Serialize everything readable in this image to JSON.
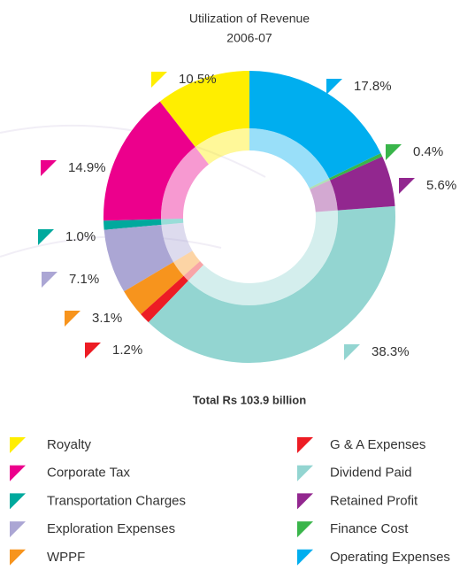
{
  "chart_data": {
    "type": "donut",
    "title": "Utilization of Revenue",
    "subtitle": "2006-07",
    "footer": "Total Rs 103.9 billion",
    "series": [
      {
        "name": "Royalty",
        "color": "#ffee00",
        "value": 10.5,
        "value_label": "10.5%"
      },
      {
        "name": "Corporate Tax",
        "color": "#ec008c",
        "value": 14.9,
        "value_label": "14.9%"
      },
      {
        "name": "Transportation Charges",
        "color": "#00a99d",
        "value": 1.0,
        "value_label": "1.0%"
      },
      {
        "name": "Exploration Expenses",
        "color": "#aba6d4",
        "value": 7.1,
        "value_label": "7.1%"
      },
      {
        "name": "WPPF",
        "color": "#f7941d",
        "value": 3.1,
        "value_label": "3.1%"
      },
      {
        "name": "G & A Expenses",
        "color": "#ed1c24",
        "value": 1.2,
        "value_label": "1.2%"
      },
      {
        "name": "Dividend Paid",
        "color": "#93d5d1",
        "value": 38.3,
        "value_label": "38.3%"
      },
      {
        "name": "Retained Profit",
        "color": "#92278f",
        "value": 5.6,
        "value_label": "5.6%"
      },
      {
        "name": "Finance Cost",
        "color": "#39b54a",
        "value": 0.4,
        "value_label": "0.4%"
      },
      {
        "name": "Operating Expenses",
        "color": "#00aeef",
        "value": 17.8,
        "value_label": "17.8%"
      }
    ]
  }
}
